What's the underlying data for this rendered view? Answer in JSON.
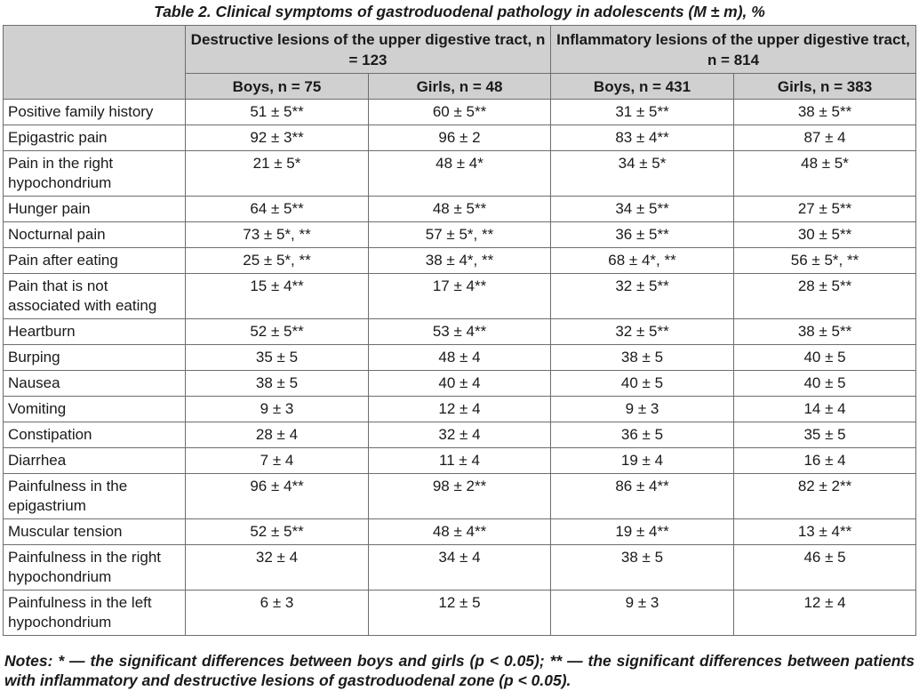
{
  "caption": "Table 2. Clinical symptoms of gastroduodenal pathology in adolescents (M ± m), %",
  "header": {
    "group1": "Destructive lesions of the upper digestive tract, n = 123",
    "group2": "Inflammatory lesions of the upper digestive tract, n = 814",
    "sub": [
      "Boys, n = 75",
      "Girls, n = 48",
      "Boys, n = 431",
      "Girls, n = 383"
    ]
  },
  "rows": [
    {
      "label": "Positive family history",
      "values": [
        "51 ± 5**",
        "60 ± 5**",
        "31 ± 5**",
        "38 ± 5**"
      ]
    },
    {
      "label": "Epigastric pain",
      "values": [
        "92 ± 3**",
        "96 ± 2",
        "83 ± 4**",
        "87 ± 4"
      ]
    },
    {
      "label": "Pain in the right hypochondrium",
      "values": [
        "21 ± 5*",
        "48 ± 4*",
        "34 ± 5*",
        "48 ± 5*"
      ]
    },
    {
      "label": "Hunger pain",
      "values": [
        "64 ± 5**",
        "48 ± 5**",
        "34 ± 5**",
        "27 ± 5**"
      ]
    },
    {
      "label": "Nocturnal pain",
      "values": [
        "73 ± 5*, **",
        "57 ± 5*, **",
        "36 ± 5**",
        "30 ± 5**"
      ]
    },
    {
      "label": "Pain after eating",
      "values": [
        "25 ± 5*, **",
        "38 ± 4*, **",
        "68 ± 4*, **",
        "56 ± 5*, **"
      ]
    },
    {
      "label": "Pain that is not associated with eating",
      "values": [
        "15 ± 4**",
        "17 ± 4**",
        "32 ± 5**",
        "28 ± 5**"
      ]
    },
    {
      "label": "Heartburn",
      "values": [
        "52 ± 5**",
        "53 ± 4**",
        "32 ± 5**",
        "38 ± 5**"
      ]
    },
    {
      "label": "Burping",
      "values": [
        "35 ± 5",
        "48 ± 4",
        "38 ± 5",
        "40 ± 5"
      ]
    },
    {
      "label": "Nausea",
      "values": [
        "38 ± 5",
        "40 ± 4",
        "40 ± 5",
        "40 ± 5"
      ]
    },
    {
      "label": "Vomiting",
      "values": [
        "9 ± 3",
        "12 ± 4",
        "9 ± 3",
        "14 ± 4"
      ]
    },
    {
      "label": "Constipation",
      "values": [
        "28 ± 4",
        "32 ± 4",
        "36 ± 5",
        "35 ± 5"
      ]
    },
    {
      "label": "Diarrhea",
      "values": [
        "7 ± 4",
        "11 ± 4",
        "19 ± 4",
        "16 ± 4"
      ]
    },
    {
      "label": "Painfulness in the epigastrium",
      "values": [
        "96 ± 4**",
        "98 ± 2**",
        "86 ± 4**",
        "82 ± 2**"
      ]
    },
    {
      "label": "Muscular tension",
      "values": [
        "52 ± 5**",
        "48 ± 4**",
        "19 ± 4**",
        "13 ± 4**"
      ]
    },
    {
      "label": "Painfulness in the right hypochondrium",
      "values": [
        "32 ± 4",
        "34 ± 4",
        "38 ± 5",
        "46 ± 5"
      ]
    },
    {
      "label": "Painfulness in the left hypochondrium",
      "values": [
        "6 ± 3",
        "12 ± 5",
        "9 ± 3",
        "12 ± 4"
      ]
    }
  ],
  "notes": "Notes: * — the significant differences between boys and girls (p < 0.05); ** — the significant differences between patients with inflammatory and destructive lesions of gastroduodenal zone (p < 0.05).",
  "colors": {
    "header_bg": "#d0d0d0",
    "border": "#6d6d6d",
    "text": "#1a1a1a"
  }
}
